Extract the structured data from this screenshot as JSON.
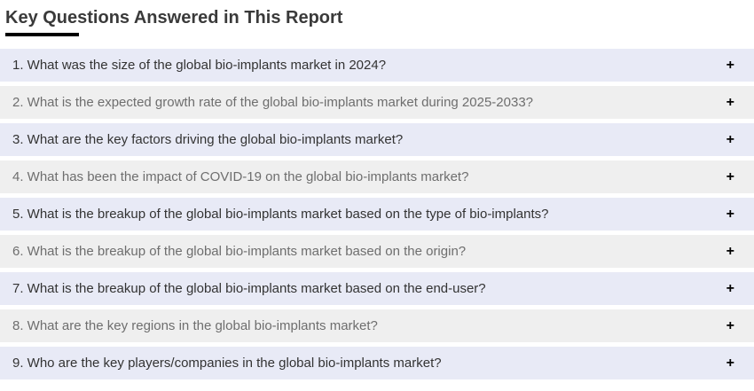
{
  "page": {
    "title": "Key Questions Answered in This Report"
  },
  "accordion": {
    "expand_icon": "+",
    "items": [
      {
        "text": "1. What was the size of the global bio-implants market in 2024?"
      },
      {
        "text": "2. What is the expected growth rate of the global bio-implants market during 2025-2033?"
      },
      {
        "text": "3. What are the key factors driving the global bio-implants market?"
      },
      {
        "text": "4. What has been the impact of COVID-19 on the global bio-implants market?"
      },
      {
        "text": "5. What is the breakup of the global bio-implants market based on the type of bio-implants?"
      },
      {
        "text": "6. What is the breakup of the global bio-implants market based on the origin?"
      },
      {
        "text": "7. What is the breakup of the global bio-implants market based on the end-user?"
      },
      {
        "text": "8. What are the key regions in the global bio-implants market?"
      },
      {
        "text": "9. Who are the key players/companies in the global bio-implants market?"
      }
    ]
  },
  "colors": {
    "row_odd_bg": "#e8eaf6",
    "row_even_bg": "#efefef",
    "row_odd_text": "#333333",
    "row_even_text": "#6e6e6e",
    "title_text": "#3a3a3a",
    "title_underline": "#000000",
    "expand_icon": "#000000"
  }
}
